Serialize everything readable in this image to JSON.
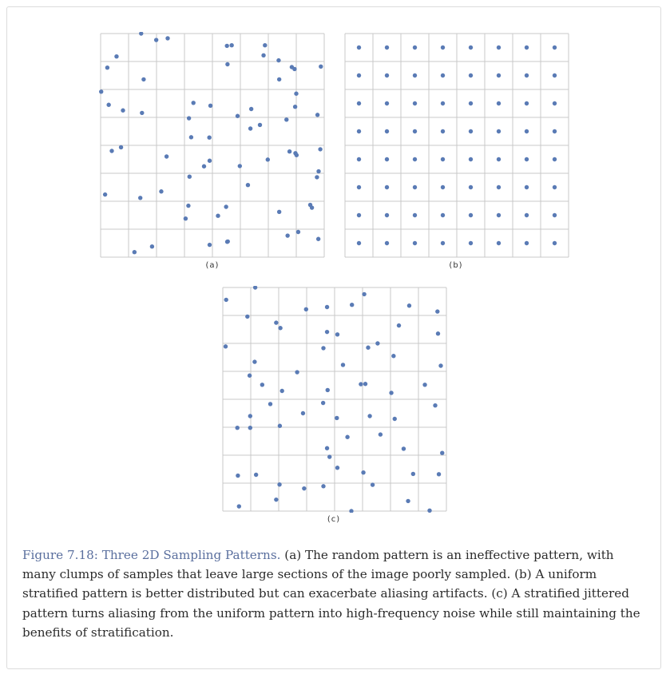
{
  "figure": {
    "title": "Figure 7.18: Three 2D Sampling Patterns.",
    "caption": " (a) The random pattern is an ineffective pattern, with many clumps of samples that leave large sections of the image poorly sampled. (b) A uniform stratified pattern is better distributed but can exacerbate aliasing artifacts. (c) A stratified jittered pattern turns aliasing from the uniform pattern into high-frequency noise while still maintaining the benefits of stratification.",
    "colors": {
      "point": "#5a7bb5",
      "grid": "#c8c8c8",
      "title": "#5a6f9e"
    }
  },
  "chart_data": [
    {
      "type": "scatter",
      "label": "(a)",
      "grid": [
        8,
        8
      ],
      "xlim": [
        0,
        8
      ],
      "ylim": [
        0,
        8
      ],
      "points": [
        [
          1.45,
          0.0
        ],
        [
          1.99,
          0.23
        ],
        [
          2.4,
          0.17
        ],
        [
          4.52,
          0.44
        ],
        [
          4.69,
          0.42
        ],
        [
          5.88,
          0.42
        ],
        [
          0.57,
          0.82
        ],
        [
          5.83,
          0.78
        ],
        [
          6.37,
          0.96
        ],
        [
          4.54,
          1.1
        ],
        [
          0.24,
          1.22
        ],
        [
          6.84,
          1.2
        ],
        [
          6.94,
          1.27
        ],
        [
          7.88,
          1.18
        ],
        [
          1.54,
          1.64
        ],
        [
          6.39,
          1.64
        ],
        [
          0.02,
          2.08
        ],
        [
          7.0,
          2.15
        ],
        [
          0.29,
          2.55
        ],
        [
          3.32,
          2.48
        ],
        [
          3.93,
          2.58
        ],
        [
          0.8,
          2.75
        ],
        [
          1.48,
          2.84
        ],
        [
          5.39,
          2.7
        ],
        [
          6.96,
          2.62
        ],
        [
          4.9,
          2.95
        ],
        [
          7.76,
          2.91
        ],
        [
          3.16,
          3.03
        ],
        [
          6.65,
          3.08
        ],
        [
          5.7,
          3.27
        ],
        [
          5.36,
          3.4
        ],
        [
          3.24,
          3.71
        ],
        [
          3.89,
          3.72
        ],
        [
          0.73,
          4.07
        ],
        [
          0.4,
          4.2
        ],
        [
          7.86,
          4.14
        ],
        [
          6.76,
          4.22
        ],
        [
          6.97,
          4.28
        ],
        [
          7.01,
          4.35
        ],
        [
          2.36,
          4.4
        ],
        [
          5.98,
          4.51
        ],
        [
          3.9,
          4.55
        ],
        [
          3.7,
          4.75
        ],
        [
          4.98,
          4.74
        ],
        [
          7.8,
          4.93
        ],
        [
          3.18,
          5.12
        ],
        [
          7.74,
          5.14
        ],
        [
          5.27,
          5.42
        ],
        [
          2.17,
          5.65
        ],
        [
          0.16,
          5.76
        ],
        [
          1.42,
          5.88
        ],
        [
          3.14,
          6.16
        ],
        [
          4.49,
          6.2
        ],
        [
          6.39,
          6.38
        ],
        [
          7.5,
          6.13
        ],
        [
          7.56,
          6.23
        ],
        [
          3.04,
          6.62
        ],
        [
          4.2,
          6.52
        ],
        [
          6.69,
          7.23
        ],
        [
          7.07,
          7.1
        ],
        [
          7.79,
          7.35
        ],
        [
          4.53,
          7.45
        ],
        [
          1.84,
          7.62
        ],
        [
          3.9,
          7.56
        ],
        [
          4.55,
          7.44
        ],
        [
          1.21,
          7.82
        ]
      ]
    },
    {
      "type": "scatter",
      "label": "(b)",
      "grid": [
        8,
        8
      ],
      "xlim": [
        0,
        8
      ],
      "ylim": [
        0,
        8
      ],
      "points": "uniform-centers"
    },
    {
      "type": "scatter",
      "label": "(c)",
      "grid": [
        8,
        8
      ],
      "xlim": [
        0,
        8
      ],
      "ylim": [
        0,
        8
      ],
      "points": [
        [
          1.16,
          0.0
        ],
        [
          5.06,
          0.24
        ],
        [
          0.12,
          0.44
        ],
        [
          2.98,
          0.78
        ],
        [
          3.73,
          0.7
        ],
        [
          4.62,
          0.62
        ],
        [
          6.67,
          0.65
        ],
        [
          7.68,
          0.86
        ],
        [
          0.88,
          1.04
        ],
        [
          1.91,
          1.26
        ],
        [
          2.06,
          1.45
        ],
        [
          3.73,
          1.59
        ],
        [
          4.1,
          1.68
        ],
        [
          6.3,
          1.36
        ],
        [
          7.7,
          1.65
        ],
        [
          0.1,
          2.11
        ],
        [
          3.6,
          2.17
        ],
        [
          5.2,
          2.15
        ],
        [
          5.54,
          2.0
        ],
        [
          6.11,
          2.45
        ],
        [
          1.14,
          2.66
        ],
        [
          4.3,
          2.77
        ],
        [
          7.8,
          2.8
        ],
        [
          0.96,
          3.15
        ],
        [
          2.66,
          3.03
        ],
        [
          1.41,
          3.48
        ],
        [
          4.94,
          3.46
        ],
        [
          5.1,
          3.45
        ],
        [
          6.03,
          3.77
        ],
        [
          7.23,
          3.48
        ],
        [
          2.12,
          3.7
        ],
        [
          3.75,
          3.67
        ],
        [
          1.7,
          4.17
        ],
        [
          3.59,
          4.13
        ],
        [
          7.6,
          4.22
        ],
        [
          0.98,
          4.6
        ],
        [
          2.87,
          4.5
        ],
        [
          4.08,
          4.67
        ],
        [
          5.26,
          4.6
        ],
        [
          6.15,
          4.7
        ],
        [
          0.52,
          5.02
        ],
        [
          0.98,
          5.02
        ],
        [
          2.04,
          4.95
        ],
        [
          4.46,
          5.35
        ],
        [
          5.64,
          5.26
        ],
        [
          3.73,
          5.75
        ],
        [
          6.47,
          5.77
        ],
        [
          7.85,
          5.92
        ],
        [
          3.82,
          6.06
        ],
        [
          4.1,
          6.45
        ],
        [
          0.54,
          6.73
        ],
        [
          1.19,
          6.7
        ],
        [
          5.03,
          6.62
        ],
        [
          6.81,
          6.67
        ],
        [
          7.73,
          6.68
        ],
        [
          2.03,
          7.05
        ],
        [
          2.91,
          7.19
        ],
        [
          3.6,
          7.11
        ],
        [
          5.36,
          7.06
        ],
        [
          1.91,
          7.59
        ],
        [
          6.63,
          7.64
        ],
        [
          0.58,
          7.83
        ],
        [
          4.6,
          8.0
        ],
        [
          7.4,
          7.98
        ]
      ]
    }
  ]
}
